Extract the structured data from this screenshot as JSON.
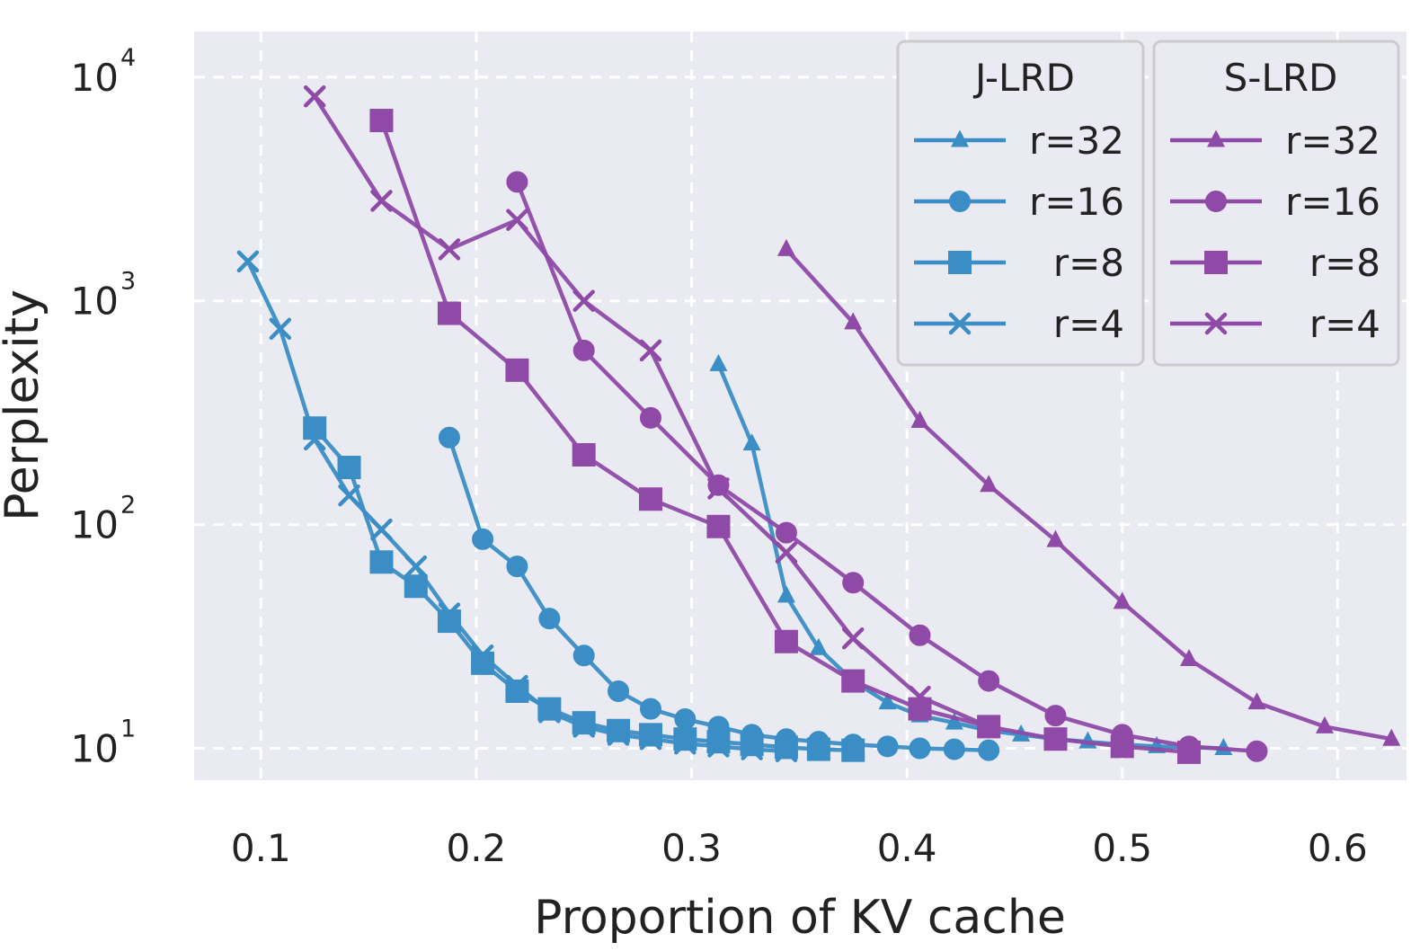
{
  "chart_data": {
    "type": "line",
    "xlabel": "Proportion of KV cache",
    "ylabel": "Perplexity",
    "yscale": "log",
    "xlim": [
      0.069,
      0.632
    ],
    "ylim": [
      7.2,
      16000
    ],
    "grid": true,
    "xticks": [
      {
        "value": 0.1,
        "label": "0.1"
      },
      {
        "value": 0.2,
        "label": "0.2"
      },
      {
        "value": 0.3,
        "label": "0.3"
      },
      {
        "value": 0.4,
        "label": "0.4"
      },
      {
        "value": 0.5,
        "label": "0.5"
      },
      {
        "value": 0.6,
        "label": "0.6"
      }
    ],
    "yticks": [
      {
        "value": 10,
        "base": "10",
        "exp": "1"
      },
      {
        "value": 100,
        "base": "10",
        "exp": "2"
      },
      {
        "value": 1000,
        "base": "10",
        "exp": "3"
      },
      {
        "value": 10000,
        "base": "10",
        "exp": "4"
      }
    ],
    "colors": {
      "J-LRD": "#3a8dc5",
      "S-LRD": "#8e4aa6"
    },
    "legend": [
      {
        "title": "J-LRD",
        "placement": "top-right-left",
        "entries": [
          "r=32",
          "r=16",
          "r=8",
          "r=4"
        ]
      },
      {
        "title": "S-LRD",
        "placement": "top-right",
        "entries": [
          "r=32",
          "r=16",
          "r=8",
          "r=4"
        ]
      }
    ],
    "series": [
      {
        "group": "J-LRD",
        "name": "r=32",
        "marker": "triangle",
        "x": [
          0.3125,
          0.328,
          0.344,
          0.359,
          0.375,
          0.391,
          0.406,
          0.422,
          0.438,
          0.453,
          0.469,
          0.484,
          0.5,
          0.516,
          0.531,
          0.547
        ],
        "y": [
          520,
          230,
          48,
          28,
          20,
          16,
          14,
          13,
          12,
          11.5,
          11,
          10.7,
          10.4,
          10.2,
          10.1,
          10.0
        ]
      },
      {
        "group": "J-LRD",
        "name": "r=16",
        "marker": "circle",
        "x": [
          0.1875,
          0.203,
          0.219,
          0.234,
          0.25,
          0.266,
          0.281,
          0.297,
          0.3125,
          0.328,
          0.344,
          0.359,
          0.375,
          0.391,
          0.406,
          0.422,
          0.438
        ],
        "y": [
          245,
          86,
          65,
          38,
          26,
          18,
          15,
          13.5,
          12.5,
          11.5,
          11,
          10.7,
          10.4,
          10.2,
          10.0,
          9.9,
          9.8
        ]
      },
      {
        "group": "J-LRD",
        "name": "r=8",
        "marker": "square",
        "x": [
          0.125,
          0.141,
          0.156,
          0.172,
          0.1875,
          0.203,
          0.219,
          0.234,
          0.25,
          0.266,
          0.281,
          0.297,
          0.3125,
          0.328,
          0.344,
          0.359,
          0.375
        ],
        "y": [
          270,
          180,
          68,
          53,
          37,
          24,
          18,
          15,
          13,
          12,
          11.5,
          11,
          10.7,
          10.4,
          10.1,
          9.9,
          9.8
        ]
      },
      {
        "group": "J-LRD",
        "name": "r=4",
        "marker": "x",
        "x": [
          0.094,
          0.109,
          0.125,
          0.141,
          0.156,
          0.172,
          0.1875,
          0.203,
          0.219,
          0.234,
          0.25,
          0.266,
          0.281,
          0.297,
          0.3125,
          0.328,
          0.344
        ],
        "y": [
          1500,
          750,
          240,
          135,
          95,
          65,
          40,
          26,
          19,
          14.5,
          12.5,
          11.5,
          11,
          10.5,
          10.2,
          9.9,
          9.7
        ]
      },
      {
        "group": "S-LRD",
        "name": "r=32",
        "marker": "triangle",
        "x": [
          0.344,
          0.375,
          0.406,
          0.438,
          0.469,
          0.5,
          0.531,
          0.5625,
          0.594,
          0.625
        ],
        "y": [
          1700,
          800,
          290,
          150,
          85,
          45,
          25,
          16,
          12.5,
          11
        ]
      },
      {
        "group": "S-LRD",
        "name": "r=16",
        "marker": "circle",
        "x": [
          0.219,
          0.25,
          0.281,
          0.3125,
          0.344,
          0.375,
          0.406,
          0.438,
          0.469,
          0.5,
          0.531,
          0.5625
        ],
        "y": [
          3400,
          600,
          300,
          150,
          92,
          55,
          32,
          20,
          14,
          11.5,
          10.2,
          9.7
        ]
      },
      {
        "group": "S-LRD",
        "name": "r=8",
        "marker": "square",
        "x": [
          0.156,
          0.1875,
          0.219,
          0.25,
          0.281,
          0.3125,
          0.344,
          0.375,
          0.406,
          0.438,
          0.469,
          0.5,
          0.531
        ],
        "y": [
          6400,
          880,
          490,
          205,
          130,
          98,
          30,
          20,
          15,
          12.5,
          11,
          10.2,
          9.6
        ]
      },
      {
        "group": "S-LRD",
        "name": "r=4",
        "marker": "x",
        "x": [
          0.125,
          0.156,
          0.1875,
          0.219,
          0.25,
          0.281,
          0.3125,
          0.344,
          0.375,
          0.406,
          0.438
        ],
        "y": [
          8200,
          2800,
          1700,
          2300,
          1000,
          600,
          145,
          75,
          31,
          17,
          12.5
        ]
      }
    ]
  }
}
